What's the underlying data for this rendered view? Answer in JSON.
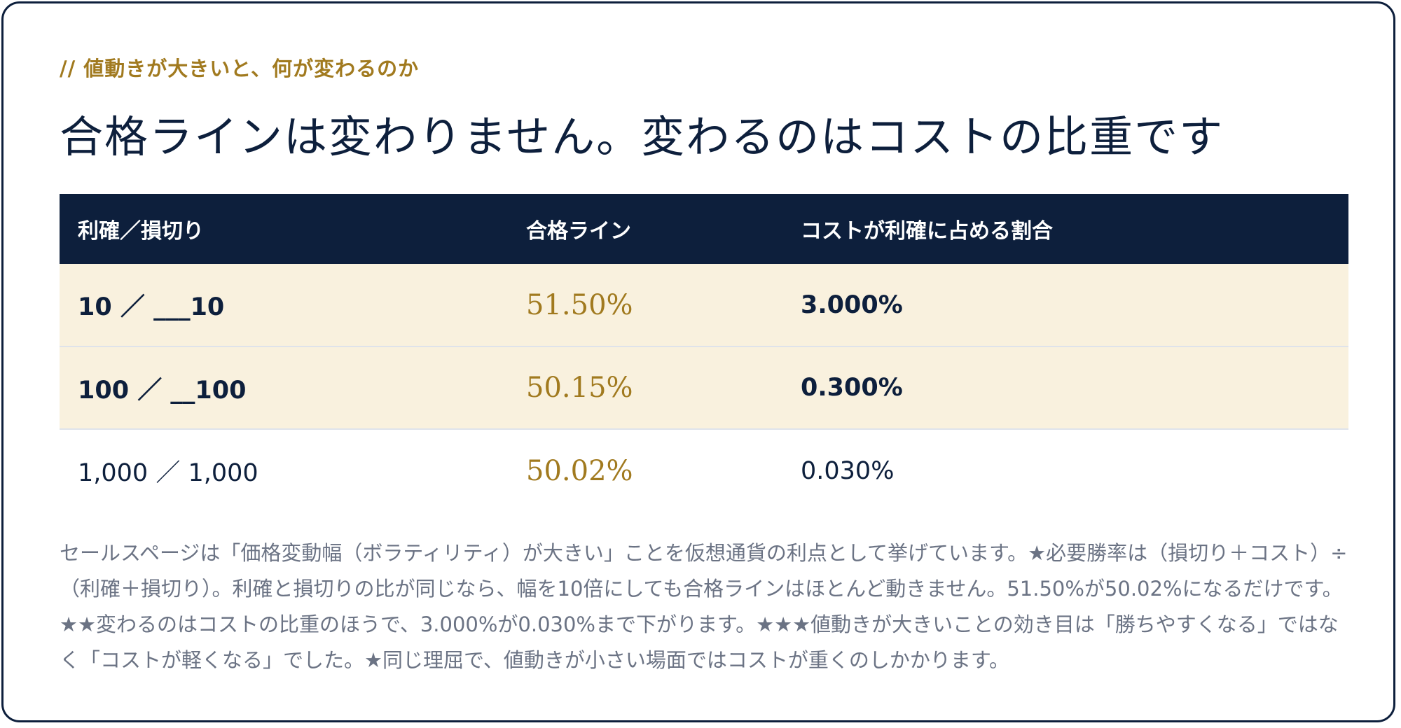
{
  "eyebrow": "// 値動きが大きいと、何が変わるのか",
  "headline": "合格ラインは変わりません。変わるのはコストの比重です",
  "table": {
    "headers": [
      "利確／損切り",
      "合格ライン",
      "コストが利確に占める割合"
    ],
    "rows": [
      {
        "ratio": "10 ／ ___10",
        "line": "51.50%",
        "cost_share": "3.000%"
      },
      {
        "ratio": "100 ／ __100",
        "line": "50.15%",
        "cost_share": "0.300%"
      },
      {
        "ratio": "1,000 ／ 1,000",
        "line": "50.02%",
        "cost_share": "0.030%"
      }
    ]
  },
  "note": "セールスページは「価格変動幅（ボラティリティ）が大きい」ことを仮想通貨の利点として挙げています。★必要勝率は（損切り＋コスト）÷（利確＋損切り）。利確と損切りの比が同じなら、幅を10倍にしても合格ラインはほとんど動きません。51.50%が50.02%になるだけです。★★変わるのはコストの比重のほうで、3.000%が0.030%まで下がります。★★★値動きが大きいことの効き目は「勝ちやすくなる」ではなく「コストが軽くなる」でした。★同じ理屈で、値動きが小さい場面ではコストが重くのしかかります。",
  "colors": {
    "navy": "#0d1f3c",
    "gold": "#a17a1f",
    "highlight_row": "#f9f1de",
    "note_text": "#6b7384"
  }
}
